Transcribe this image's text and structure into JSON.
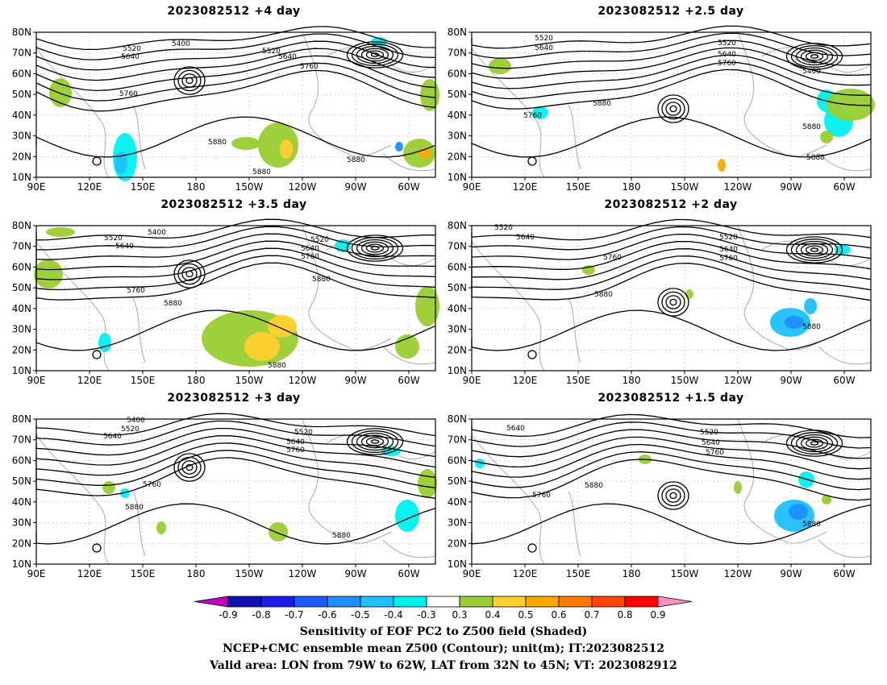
{
  "panels": [
    {
      "title": "2023082512 +4 day"
    },
    {
      "title": "2023082512 +2.5 day"
    },
    {
      "title": "2023082512 +3.5 day"
    },
    {
      "title": "2023082512 +2 day"
    },
    {
      "title": "2023082512 +3 day"
    },
    {
      "title": "2023082512 +1.5 day"
    }
  ],
  "lat_ticks": [
    "80N",
    "70N",
    "60N",
    "50N",
    "40N",
    "30N",
    "20N",
    "10N"
  ],
  "lon_ticks": [
    "90E",
    "120E",
    "150E",
    "180",
    "150W",
    "120W",
    "90W",
    "60W"
  ],
  "contour_labels": [
    [
      "5400",
      "5520",
      "5640",
      "5520",
      "5640",
      "5760",
      "5760",
      "5880",
      "5880",
      "5880"
    ],
    [
      "5520",
      "5640",
      "5520",
      "5640",
      "5760",
      "5400",
      "5880",
      "5760",
      "5880",
      "5880"
    ],
    [
      "5520",
      "5400",
      "5640",
      "5520",
      "5640",
      "5760",
      "5760",
      "5880",
      "5880",
      "5880"
    ],
    [
      "5520",
      "5640",
      "5520",
      "5640",
      "5760",
      "5760",
      "5880",
      "5880"
    ],
    [
      "5400",
      "5520",
      "5640",
      "5520",
      "5640",
      "5760",
      "5760",
      "5880",
      "5880"
    ],
    [
      "5640",
      "5520",
      "5640",
      "5760",
      "5880",
      "5760",
      "5880"
    ]
  ],
  "colorbar": {
    "colors": [
      "#c000c0",
      "#1010b0",
      "#1c1ce8",
      "#1e5bff",
      "#1e90ff",
      "#20c0ff",
      "#00f0f0",
      "#ffffff",
      "#9acd32",
      "#ffd030",
      "#ffa500",
      "#ff7a00",
      "#ff4500",
      "#ff0000",
      "#ff90c0"
    ],
    "labels": [
      "-0.9",
      "-0.8",
      "-0.7",
      "-0.6",
      "-0.5",
      "-0.4",
      "-0.3",
      "0.3",
      "0.4",
      "0.5",
      "0.6",
      "0.7",
      "0.8",
      "0.9"
    ]
  },
  "caption": {
    "line1": "Sensitivity of EOF PC2 to Z500 field (Shaded)",
    "line2": "NCEP+CMC ensemble mean Z500 (Contour); unit(m); IT:2023082512",
    "line3": "Valid area: LON from 79W to 62W, LAT from 32N to 45N; VT: 2023082912"
  }
}
